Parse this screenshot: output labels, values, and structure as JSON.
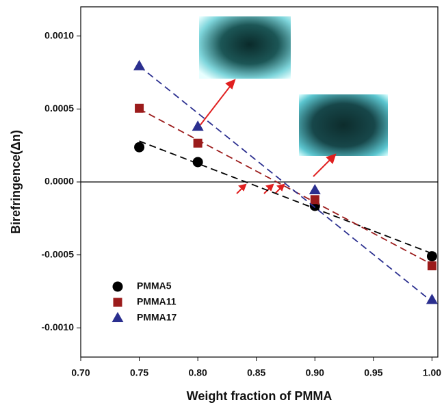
{
  "chart_data": {
    "type": "scatter",
    "x_label": "Weight fraction of PMMA",
    "y_label": "Birefringence(Δn)",
    "xlim": [
      0.7,
      1.005
    ],
    "ylim": [
      -0.0012,
      0.0012
    ],
    "xticks": [
      {
        "value": 0.7,
        "label": "0.70"
      },
      {
        "value": 0.75,
        "label": "0.75"
      },
      {
        "value": 0.8,
        "label": "0.80"
      },
      {
        "value": 0.85,
        "label": "0.85"
      },
      {
        "value": 0.9,
        "label": "0.90"
      },
      {
        "value": 0.95,
        "label": "0.95"
      },
      {
        "value": 1.0,
        "label": "1.00"
      }
    ],
    "yticks": [
      {
        "value": -0.001,
        "label": "-0.0010"
      },
      {
        "value": -0.0005,
        "label": "-0.0005"
      },
      {
        "value": 0,
        "label": "0.0000"
      },
      {
        "value": 0.0005,
        "label": "0.0005"
      },
      {
        "value": 0.001,
        "label": "0.0010"
      }
    ],
    "x": [
      0.75,
      0.8,
      0.9,
      1.0
    ],
    "fit_x": [
      0.75,
      1.0
    ],
    "zero_line": true,
    "series": [
      {
        "name": "PMMA5",
        "color": "#000000",
        "marker": "circle",
        "values": [
          0.000238,
          0.000136,
          -0.000164,
          -0.000509
        ],
        "fit": [
          0.00028,
          -0.00049
        ]
      },
      {
        "name": "PMMA11",
        "color": "#9b1b1b",
        "marker": "square",
        "values": [
          0.000505,
          0.000266,
          -0.000121,
          -0.000575
        ],
        "fit": [
          0.0005,
          -0.000565
        ]
      },
      {
        "name": "PMMA17",
        "color": "#2b2f8f",
        "marker": "triangle",
        "values": [
          0.000794,
          0.000379,
          -5.6e-05,
          -0.000808
        ],
        "fit": [
          0.000794,
          -0.00082
        ]
      }
    ]
  }
}
